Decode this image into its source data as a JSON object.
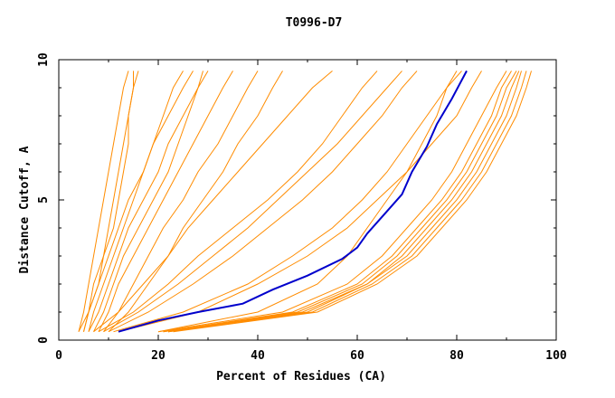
{
  "chart_data": {
    "type": "line",
    "title": "T0996-D7",
    "xlabel": "Percent of Residues (CA)",
    "ylabel": "Distance Cutoff, A",
    "xlim": [
      0,
      100
    ],
    "ylim": [
      0,
      10
    ],
    "x_ticks": [
      "0",
      "20",
      "40",
      "60",
      "80",
      "100"
    ],
    "y_ticks": [
      "0",
      "5",
      "10"
    ],
    "grid": false,
    "colors": {
      "other_models": "#ff8c00",
      "highlighted_model": "#0000cc"
    },
    "highlighted_series": {
      "x": [
        12,
        20,
        28,
        37,
        43,
        50,
        57,
        60,
        62,
        66,
        69,
        71,
        74,
        76,
        79,
        82
      ],
      "y": [
        0.3,
        0.7,
        1.0,
        1.3,
        1.8,
        2.3,
        2.9,
        3.3,
        3.8,
        4.6,
        5.2,
        6.0,
        6.9,
        7.7,
        8.6,
        9.6
      ]
    },
    "series": [
      {
        "x": [
          4,
          5,
          6,
          7,
          8,
          9,
          10,
          11,
          12,
          13,
          14
        ],
        "y": [
          0.3,
          1.0,
          2.0,
          3.0,
          4.0,
          5.0,
          6.0,
          7.0,
          8.0,
          9.0,
          9.6
        ]
      },
      {
        "x": [
          5,
          6,
          7,
          9,
          10,
          11,
          12,
          13,
          14,
          15,
          16
        ],
        "y": [
          0.3,
          1.0,
          2.0,
          3.0,
          4.0,
          5.0,
          6.0,
          7.0,
          8.0,
          9.0,
          9.6
        ]
      },
      {
        "x": [
          4,
          6,
          8,
          9,
          11,
          12,
          13,
          14,
          14,
          15,
          15
        ],
        "y": [
          0.3,
          1.0,
          2.0,
          3.0,
          4.0,
          5.0,
          6.0,
          7.0,
          8.0,
          9.0,
          9.6
        ]
      },
      {
        "x": [
          6,
          7,
          9,
          11,
          13,
          15,
          17,
          19,
          22,
          25,
          27
        ],
        "y": [
          0.3,
          1.0,
          2.0,
          3.0,
          4.0,
          5.0,
          6.0,
          7.0,
          8.0,
          9.0,
          9.6
        ]
      },
      {
        "x": [
          5,
          6,
          8,
          10,
          12,
          14,
          17,
          19,
          21,
          23,
          25
        ],
        "y": [
          0.3,
          1.0,
          2.0,
          3.0,
          4.0,
          5.0,
          6.0,
          7.0,
          8.0,
          9.0,
          9.6
        ]
      },
      {
        "x": [
          6,
          8,
          10,
          12,
          14,
          17,
          20,
          22,
          25,
          28,
          30
        ],
        "y": [
          0.3,
          1.0,
          2.0,
          3.0,
          4.0,
          5.0,
          6.0,
          7.0,
          8.0,
          9.0,
          9.6
        ]
      },
      {
        "x": [
          7,
          9,
          11,
          13,
          16,
          19,
          22,
          24,
          26,
          28,
          29
        ],
        "y": [
          0.3,
          1.0,
          2.0,
          3.0,
          4.0,
          5.0,
          6.0,
          7.0,
          8.0,
          9.0,
          9.6
        ]
      },
      {
        "x": [
          8,
          10,
          12,
          15,
          18,
          21,
          24,
          27,
          30,
          33,
          35
        ],
        "y": [
          0.3,
          1.0,
          2.0,
          3.0,
          4.0,
          5.0,
          6.0,
          7.0,
          8.0,
          9.0,
          9.6
        ]
      },
      {
        "x": [
          9,
          12,
          15,
          18,
          21,
          25,
          28,
          32,
          35,
          38,
          40
        ],
        "y": [
          0.3,
          1.0,
          2.0,
          3.0,
          4.0,
          5.0,
          6.0,
          7.0,
          8.0,
          9.0,
          9.6
        ]
      },
      {
        "x": [
          10,
          14,
          18,
          22,
          25,
          29,
          33,
          36,
          40,
          43,
          45
        ],
        "y": [
          0.3,
          1.0,
          2.0,
          3.0,
          4.0,
          5.0,
          6.0,
          7.0,
          8.0,
          9.0,
          9.6
        ]
      },
      {
        "x": [
          8,
          15,
          22,
          28,
          35,
          42,
          48,
          53,
          57,
          61,
          64
        ],
        "y": [
          0.3,
          1.0,
          2.0,
          3.0,
          4.0,
          5.0,
          6.0,
          7.0,
          8.0,
          9.0,
          9.6
        ]
      },
      {
        "x": [
          9,
          16,
          24,
          31,
          38,
          44,
          50,
          56,
          61,
          66,
          69
        ],
        "y": [
          0.3,
          1.0,
          2.0,
          3.0,
          4.0,
          5.0,
          6.0,
          7.0,
          8.0,
          9.0,
          9.6
        ]
      },
      {
        "x": [
          10,
          18,
          27,
          35,
          42,
          49,
          55,
          60,
          65,
          69,
          72
        ],
        "y": [
          0.3,
          1.0,
          2.0,
          3.0,
          4.0,
          5.0,
          6.0,
          7.0,
          8.0,
          9.0,
          9.6
        ]
      },
      {
        "x": [
          7,
          12,
          17,
          22,
          26,
          31,
          36,
          41,
          46,
          51,
          55
        ],
        "y": [
          0.3,
          1.0,
          2.0,
          3.0,
          4.0,
          5.0,
          6.0,
          7.0,
          8.0,
          9.0,
          9.6
        ]
      },
      {
        "x": [
          20,
          40,
          52,
          58,
          62,
          66,
          70,
          73,
          76,
          78,
          80
        ],
        "y": [
          0.3,
          1.0,
          2.0,
          3.0,
          4.0,
          5.0,
          6.0,
          7.0,
          8.0,
          9.0,
          9.6
        ]
      },
      {
        "x": [
          20,
          45,
          58,
          65,
          70,
          75,
          79,
          82,
          85,
          88,
          90
        ],
        "y": [
          0.3,
          1.0,
          2.0,
          3.0,
          4.0,
          5.0,
          6.0,
          7.0,
          8.0,
          9.0,
          9.6
        ]
      },
      {
        "x": [
          21,
          48,
          61,
          68,
          73,
          78,
          82,
          85,
          88,
          90,
          92
        ],
        "y": [
          0.3,
          1.0,
          2.0,
          3.0,
          4.0,
          5.0,
          6.0,
          7.0,
          8.0,
          9.0,
          9.6
        ]
      },
      {
        "x": [
          22,
          50,
          62,
          70,
          75,
          80,
          84,
          87,
          90,
          92,
          93
        ],
        "y": [
          0.3,
          1.0,
          2.0,
          3.0,
          4.0,
          5.0,
          6.0,
          7.0,
          8.0,
          9.0,
          9.6
        ]
      },
      {
        "x": [
          22,
          51,
          63,
          71,
          76,
          81,
          85,
          88,
          91,
          93,
          94
        ],
        "y": [
          0.3,
          1.0,
          2.0,
          3.0,
          4.0,
          5.0,
          6.0,
          7.0,
          8.0,
          9.0,
          9.6
        ]
      },
      {
        "x": [
          23,
          52,
          64,
          72,
          77,
          82,
          86,
          89,
          92,
          94,
          95
        ],
        "y": [
          0.3,
          1.0,
          2.0,
          3.0,
          4.0,
          5.0,
          6.0,
          7.0,
          8.0,
          9.0,
          9.6
        ]
      },
      {
        "x": [
          21,
          47,
          60,
          67,
          72,
          77,
          81,
          84,
          87,
          89,
          91
        ],
        "y": [
          0.3,
          1.0,
          2.0,
          3.0,
          4.0,
          5.0,
          6.0,
          7.0,
          8.0,
          9.0,
          9.6
        ]
      },
      {
        "x": [
          22,
          49,
          62,
          69,
          74,
          79,
          83,
          86,
          89,
          91,
          92.5
        ],
        "y": [
          0.3,
          1.0,
          2.0,
          3.0,
          4.0,
          5.0,
          6.0,
          7.0,
          8.0,
          9.0,
          9.6
        ]
      },
      {
        "x": [
          11,
          25,
          38,
          47,
          55,
          61,
          66,
          70,
          74,
          78,
          81
        ],
        "y": [
          0.3,
          1.0,
          2.0,
          3.0,
          4.0,
          5.0,
          6.0,
          7.0,
          8.0,
          9.0,
          9.6
        ]
      },
      {
        "x": [
          12,
          28,
          40,
          50,
          58,
          64,
          70,
          75,
          80,
          83,
          85
        ],
        "y": [
          0.3,
          1.0,
          2.0,
          3.0,
          4.0,
          5.0,
          6.0,
          7.0,
          8.0,
          9.0,
          9.6
        ]
      }
    ]
  }
}
